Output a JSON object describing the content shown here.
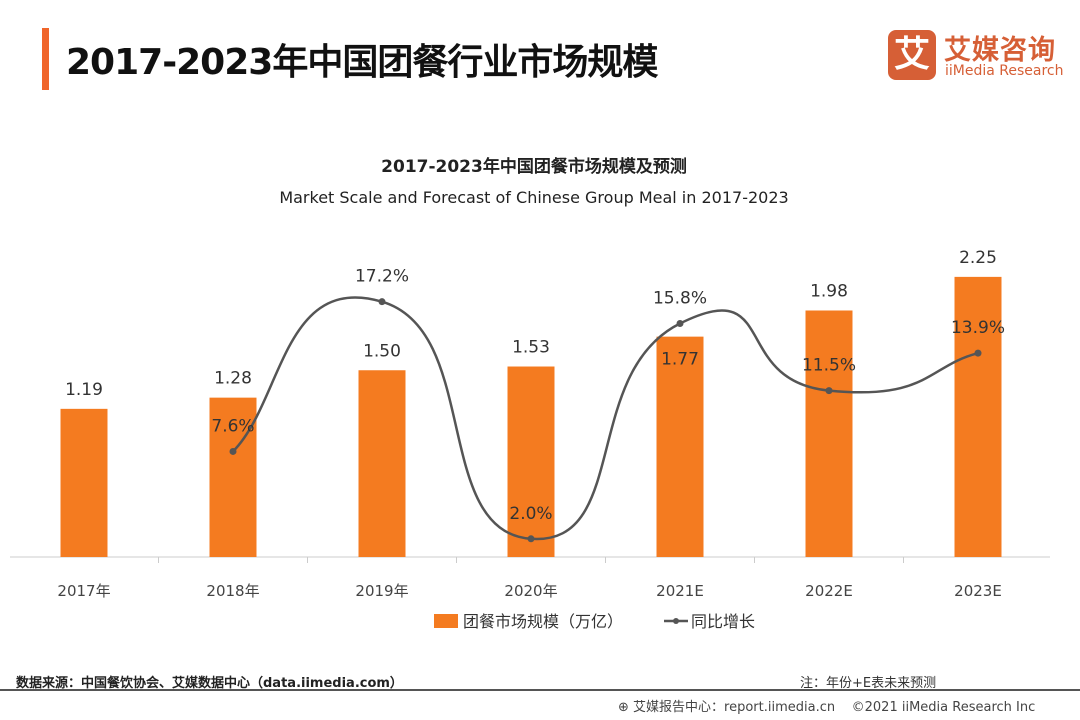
{
  "header": {
    "title": "2017-2023年中国团餐行业市场规模",
    "logo_mark": "艾",
    "logo_cn": "艾媒咨询",
    "logo_en": "iiMedia Research",
    "accent_color": "#f0652a"
  },
  "chart_data": {
    "type": "bar+line",
    "title": "2017-2023年中国团餐市场规模及预测",
    "subtitle": "Market Scale and Forecast of Chinese Group Meal in 2017-2023",
    "categories": [
      "2017年",
      "2018年",
      "2019年",
      "2020年",
      "2021E",
      "2022E",
      "2023E"
    ],
    "series": [
      {
        "name": "团餐市场规模（万亿）",
        "type": "bar",
        "color": "#f47b20",
        "values": [
          1.19,
          1.28,
          1.5,
          1.53,
          1.77,
          1.98,
          2.25
        ],
        "labels": [
          "1.19",
          "1.28",
          "1.50",
          "1.53",
          "1.77",
          "1.98",
          "2.25"
        ]
      },
      {
        "name": "同比增长",
        "type": "line",
        "color": "#555555",
        "values": [
          null,
          7.6,
          17.2,
          2.0,
          15.8,
          11.5,
          13.9
        ],
        "labels": [
          "",
          "7.6%",
          "17.2%",
          "2.0%",
          "15.8%",
          "11.5%",
          "13.9%"
        ]
      }
    ],
    "legend": "bottom-center",
    "grid": false
  },
  "footer": {
    "source": "数据来源：中国餐饮协会、艾媒数据中心（data.iimedia.com）",
    "note": "注：年份+E表未来预测",
    "site": "艾媒报告中心：report.iimedia.cn",
    "copyright": "©2021  iiMedia Research  Inc"
  }
}
